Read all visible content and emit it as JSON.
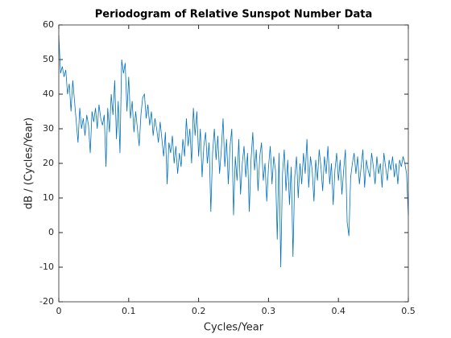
{
  "chart_data": {
    "type": "line",
    "title": "Periodogram of Relative Sunspot Number Data",
    "xlabel": "Cycles/Year",
    "ylabel": "dB / (Cycles/Year)",
    "color": "#0072bd",
    "x": [
      0,
      0.0025,
      0.005,
      0.0075,
      0.01,
      0.0125,
      0.015,
      0.0175,
      0.02,
      0.0225,
      0.025,
      0.0275,
      0.03,
      0.0325,
      0.035,
      0.0375,
      0.04,
      0.0425,
      0.045,
      0.0475,
      0.05,
      0.0525,
      0.055,
      0.0575,
      0.06,
      0.0625,
      0.065,
      0.0675,
      0.07,
      0.0725,
      0.075,
      0.0775,
      0.08,
      0.0825,
      0.085,
      0.0875,
      0.09,
      0.0925,
      0.095,
      0.0975,
      0.1,
      0.1025,
      0.105,
      0.1075,
      0.11,
      0.1125,
      0.115,
      0.1175,
      0.12,
      0.1225,
      0.125,
      0.1275,
      0.13,
      0.1325,
      0.135,
      0.1375,
      0.14,
      0.1425,
      0.145,
      0.1475,
      0.15,
      0.1525,
      0.155,
      0.1575,
      0.16,
      0.1625,
      0.165,
      0.1675,
      0.17,
      0.1725,
      0.175,
      0.1775,
      0.18,
      0.1825,
      0.185,
      0.1875,
      0.19,
      0.1925,
      0.195,
      0.1975,
      0.2,
      0.2025,
      0.205,
      0.2075,
      0.21,
      0.2125,
      0.215,
      0.2175,
      0.22,
      0.2225,
      0.225,
      0.2275,
      0.23,
      0.2325,
      0.235,
      0.2375,
      0.24,
      0.2425,
      0.245,
      0.2475,
      0.25,
      0.2525,
      0.255,
      0.2575,
      0.26,
      0.2625,
      0.265,
      0.2675,
      0.27,
      0.2725,
      0.275,
      0.2775,
      0.28,
      0.2825,
      0.285,
      0.2875,
      0.29,
      0.2925,
      0.295,
      0.2975,
      0.3,
      0.3025,
      0.305,
      0.3075,
      0.31,
      0.3125,
      0.315,
      0.3175,
      0.32,
      0.3225,
      0.325,
      0.3275,
      0.33,
      0.3325,
      0.335,
      0.3375,
      0.34,
      0.3425,
      0.345,
      0.3475,
      0.35,
      0.3525,
      0.355,
      0.3575,
      0.36,
      0.3625,
      0.365,
      0.3675,
      0.37,
      0.3725,
      0.375,
      0.3775,
      0.38,
      0.3825,
      0.385,
      0.3875,
      0.39,
      0.3925,
      0.395,
      0.3975,
      0.4,
      0.4025,
      0.405,
      0.4075,
      0.41,
      0.4125,
      0.415,
      0.4175,
      0.42,
      0.4225,
      0.425,
      0.4275,
      0.43,
      0.4325,
      0.435,
      0.4375,
      0.44,
      0.4425,
      0.445,
      0.4475,
      0.45,
      0.4525,
      0.455,
      0.4575,
      0.46,
      0.4625,
      0.465,
      0.4675,
      0.47,
      0.4725,
      0.475,
      0.4775,
      0.48,
      0.4825,
      0.485,
      0.4875,
      0.49,
      0.4925,
      0.495,
      0.4975,
      0.5
    ],
    "values": [
      57,
      46,
      48,
      45,
      47,
      40,
      43,
      35,
      44,
      38,
      32,
      26,
      36,
      30,
      33,
      28,
      34,
      31,
      23,
      35,
      32,
      36,
      30,
      37,
      33,
      31,
      34,
      19,
      36,
      29,
      40,
      34,
      44,
      27,
      38,
      23,
      50,
      46,
      49,
      35,
      45,
      33,
      38,
      29,
      35,
      30,
      25,
      34,
      39,
      40,
      33,
      37,
      31,
      35,
      28,
      33,
      30,
      26,
      32,
      27,
      22,
      29,
      14,
      26,
      23,
      28,
      20,
      25,
      17,
      23,
      19,
      27,
      22,
      33,
      25,
      30,
      20,
      36,
      28,
      35,
      22,
      30,
      16,
      25,
      29,
      20,
      26,
      6,
      23,
      30,
      21,
      28,
      17,
      24,
      33,
      19,
      27,
      14,
      25,
      30,
      5,
      22,
      15,
      27,
      11,
      20,
      25,
      16,
      23,
      6,
      21,
      29,
      18,
      24,
      12,
      22,
      26,
      15,
      20,
      9,
      19,
      25,
      14,
      22,
      18,
      -2,
      23,
      -10,
      17,
      24,
      12,
      21,
      8,
      19,
      -7,
      16,
      22,
      10,
      20,
      14,
      23,
      17,
      27,
      13,
      22,
      18,
      9,
      21,
      15,
      24,
      19,
      12,
      22,
      17,
      25,
      14,
      20,
      8,
      18,
      23,
      15,
      21,
      11,
      18,
      24,
      3,
      -1,
      16,
      20,
      23,
      17,
      22,
      14,
      19,
      24,
      13,
      21,
      18,
      16,
      23,
      19,
      14,
      22,
      17,
      20,
      13,
      23,
      19,
      15,
      21,
      18,
      22,
      16,
      20,
      14,
      21,
      19,
      22,
      20,
      17,
      5
    ],
    "xlim": [
      0,
      0.5
    ],
    "xticks": [
      0,
      0.1,
      0.2,
      0.3,
      0.4,
      0.5
    ],
    "ylim": [
      -20,
      60
    ],
    "yticks": [
      -20,
      -10,
      0,
      10,
      20,
      30,
      40,
      50,
      60
    ]
  }
}
